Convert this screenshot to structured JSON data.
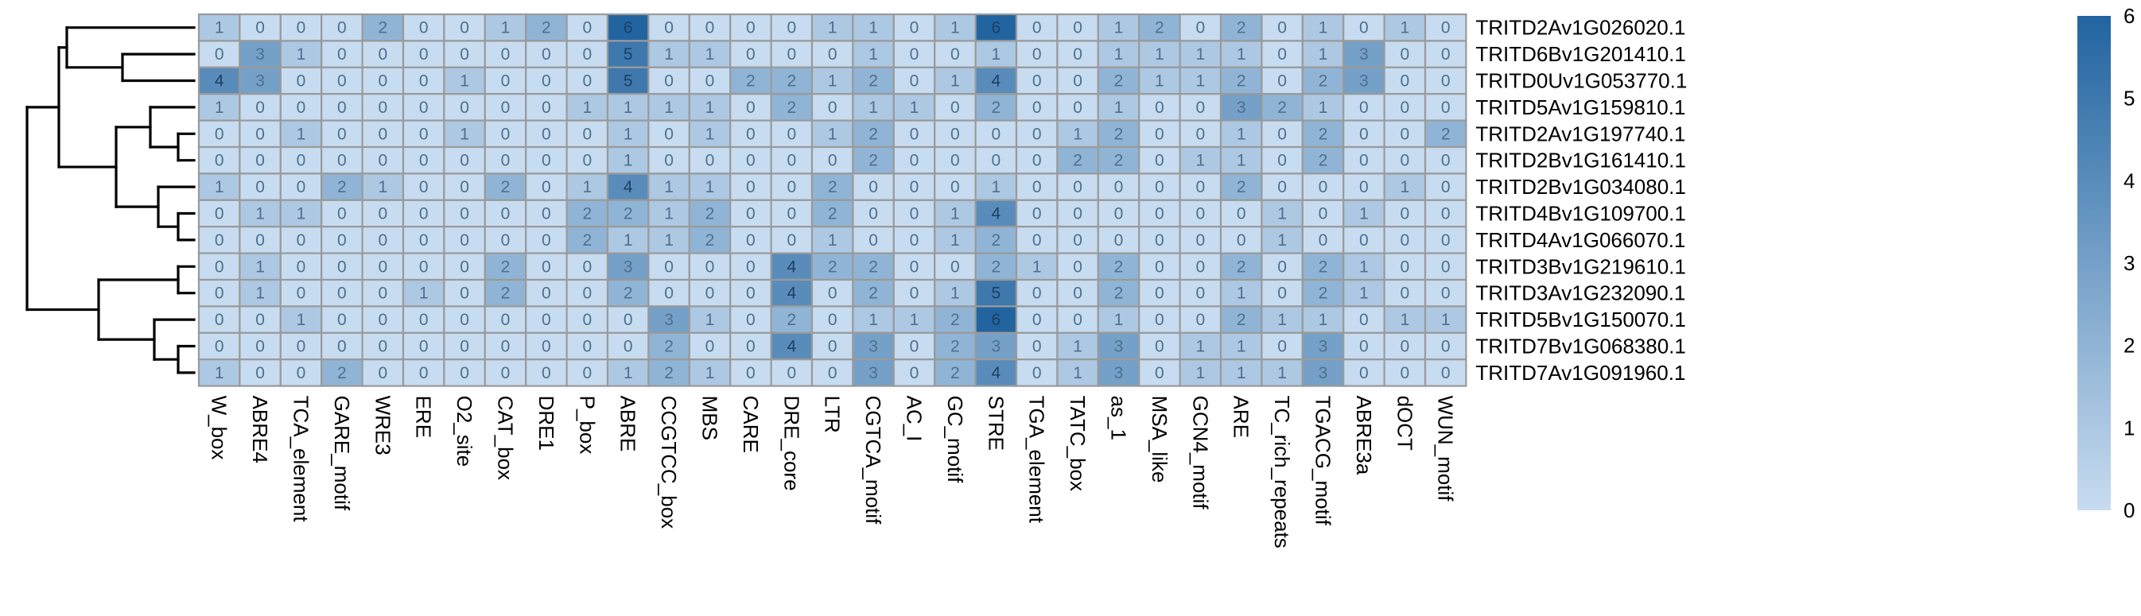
{
  "chart_data": {
    "type": "heatmap",
    "title": "",
    "xlabel": "",
    "ylabel": "",
    "columns": [
      "W_box",
      "ABRE4",
      "TCA_element",
      "GARE_motif",
      "WRE3",
      "ERE",
      "O2_site",
      "CAT_box",
      "DRE1",
      "P_box",
      "ABRE",
      "CCGTCC_box",
      "MBS",
      "CARE",
      "DRE_core",
      "LTR",
      "CGTCA_motif",
      "AC_I",
      "GC_motif",
      "STRE",
      "TGA_element",
      "TATC_box",
      "as_1",
      "MSA_like",
      "GCN4_motif",
      "ARE",
      "TC_rich_repeats",
      "TGACG_motif",
      "ABRE3a",
      "dOCT",
      "WUN_motif"
    ],
    "rows": [
      "TRITD2Av1G026020.1",
      "TRITD6Bv1G201410.1",
      "TRITD0Uv1G053770.1",
      "TRITD5Av1G159810.1",
      "TRITD2Av1G197740.1",
      "TRITD2Bv1G161410.1",
      "TRITD2Bv1G034080.1",
      "TRITD4Bv1G109700.1",
      "TRITD4Av1G066070.1",
      "TRITD3Bv1G219610.1",
      "TRITD3Av1G232090.1",
      "TRITD5Bv1G150070.1",
      "TRITD7Bv1G068380.1",
      "TRITD7Av1G091960.1"
    ],
    "values": [
      [
        1,
        0,
        0,
        0,
        2,
        0,
        0,
        1,
        2,
        0,
        6,
        0,
        0,
        0,
        0,
        1,
        1,
        0,
        1,
        6,
        0,
        0,
        1,
        2,
        0,
        2,
        0,
        1,
        0,
        1,
        0
      ],
      [
        0,
        3,
        1,
        0,
        0,
        0,
        0,
        0,
        0,
        0,
        5,
        1,
        1,
        0,
        0,
        0,
        1,
        0,
        0,
        1,
        0,
        0,
        1,
        1,
        1,
        1,
        0,
        1,
        3,
        0,
        0
      ],
      [
        4,
        3,
        0,
        0,
        0,
        0,
        1,
        0,
        0,
        0,
        5,
        0,
        0,
        2,
        2,
        1,
        2,
        0,
        1,
        4,
        0,
        0,
        2,
        1,
        1,
        2,
        0,
        2,
        3,
        0,
        0
      ],
      [
        1,
        0,
        0,
        0,
        0,
        0,
        0,
        0,
        0,
        1,
        1,
        1,
        1,
        0,
        2,
        0,
        1,
        1,
        0,
        2,
        0,
        0,
        1,
        0,
        0,
        3,
        2,
        1,
        0,
        0,
        0
      ],
      [
        0,
        0,
        1,
        0,
        0,
        0,
        1,
        0,
        0,
        0,
        1,
        0,
        1,
        0,
        0,
        1,
        2,
        0,
        0,
        0,
        0,
        1,
        2,
        0,
        0,
        1,
        0,
        2,
        0,
        0,
        2
      ],
      [
        0,
        0,
        0,
        0,
        0,
        0,
        0,
        0,
        0,
        0,
        1,
        0,
        0,
        0,
        0,
        0,
        2,
        0,
        0,
        0,
        0,
        2,
        2,
        0,
        1,
        1,
        0,
        2,
        0,
        0,
        0
      ],
      [
        1,
        0,
        0,
        2,
        1,
        0,
        0,
        2,
        0,
        1,
        4,
        1,
        1,
        0,
        0,
        2,
        0,
        0,
        0,
        1,
        0,
        0,
        0,
        0,
        0,
        2,
        0,
        0,
        0,
        1,
        0
      ],
      [
        0,
        1,
        1,
        0,
        0,
        0,
        0,
        0,
        0,
        2,
        2,
        1,
        2,
        0,
        0,
        2,
        0,
        0,
        1,
        4,
        0,
        0,
        0,
        0,
        0,
        0,
        1,
        0,
        1,
        0,
        0
      ],
      [
        0,
        0,
        0,
        0,
        0,
        0,
        0,
        0,
        0,
        2,
        1,
        1,
        2,
        0,
        0,
        1,
        0,
        0,
        1,
        2,
        0,
        0,
        0,
        0,
        0,
        0,
        1,
        0,
        0,
        0,
        0
      ],
      [
        0,
        1,
        0,
        0,
        0,
        0,
        0,
        2,
        0,
        0,
        3,
        0,
        0,
        0,
        4,
        2,
        2,
        0,
        0,
        2,
        1,
        0,
        2,
        0,
        0,
        2,
        0,
        2,
        1,
        0,
        0
      ],
      [
        0,
        1,
        0,
        0,
        0,
        1,
        0,
        2,
        0,
        0,
        2,
        0,
        0,
        0,
        4,
        0,
        2,
        0,
        1,
        5,
        0,
        0,
        2,
        0,
        0,
        1,
        0,
        2,
        1,
        0,
        0
      ],
      [
        0,
        0,
        1,
        0,
        0,
        0,
        0,
        0,
        0,
        0,
        0,
        3,
        1,
        0,
        2,
        0,
        1,
        1,
        2,
        6,
        0,
        0,
        1,
        0,
        0,
        2,
        1,
        1,
        0,
        1,
        1
      ],
      [
        0,
        0,
        0,
        0,
        0,
        0,
        0,
        0,
        0,
        0,
        0,
        2,
        0,
        0,
        4,
        0,
        3,
        0,
        2,
        3,
        0,
        1,
        3,
        0,
        1,
        1,
        0,
        3,
        0,
        0,
        0
      ],
      [
        1,
        0,
        0,
        2,
        0,
        0,
        0,
        0,
        0,
        0,
        1,
        2,
        1,
        0,
        0,
        0,
        3,
        0,
        2,
        4,
        0,
        1,
        3,
        0,
        1,
        1,
        1,
        3,
        0,
        0,
        0
      ]
    ],
    "colorbar": {
      "min": 0,
      "max": 6,
      "ticks": [
        "0",
        "1",
        "2",
        "3",
        "4",
        "5",
        "6"
      ]
    },
    "colors": {
      "low": "#c7dcf0",
      "high": "#2264a0",
      "cell_border": "#9a9a9a",
      "dendrogram": "#000000"
    },
    "dendrogram": "row clustering tree on left side"
  }
}
